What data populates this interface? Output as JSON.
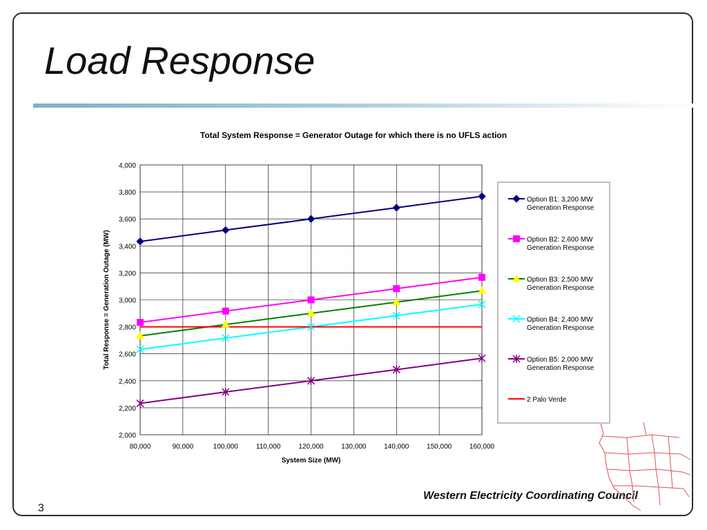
{
  "slide": {
    "title": "Load Response",
    "page_number": "3",
    "organization": "Western Electricity Coordinating Council",
    "map_icon": "western-interconnection-map-icon"
  },
  "colors": {
    "title_rule": "#7fb0c8",
    "map_lines": "#d9534f"
  },
  "chart_data": {
    "type": "line",
    "title": "Total System Response = Generator Outage for which there is no UFLS action",
    "xlabel": "System Size (MW)",
    "ylabel": "Total Response = Generation Outage (MW)",
    "xlim": [
      80000,
      160000
    ],
    "ylim": [
      2000,
      4000
    ],
    "x_ticks": [
      80000,
      90000,
      100000,
      110000,
      120000,
      130000,
      140000,
      150000,
      160000
    ],
    "x_tick_labels": [
      "80,000",
      "90,000",
      "100,000",
      "110,000",
      "120,000",
      "130,000",
      "140,000",
      "150,000",
      "160,000"
    ],
    "y_ticks": [
      2000,
      2200,
      2400,
      2600,
      2800,
      3000,
      3200,
      3400,
      3600,
      3800,
      4000
    ],
    "y_tick_labels": [
      "2,000",
      "2,200",
      "2,400",
      "2,600",
      "2,800",
      "3,000",
      "3,200",
      "3,400",
      "3,600",
      "3,800",
      "4,000"
    ],
    "grid": true,
    "legend_position": "right",
    "series": [
      {
        "name": "Option B1: 3,200 MW Generation Response",
        "color": "#000080",
        "marker": "diamond",
        "x": [
          80000,
          100000,
          120000,
          140000,
          160000
        ],
        "values": [
          3433,
          3517,
          3600,
          3683,
          3767
        ]
      },
      {
        "name": "Option B2: 2,600 MW Generation Response",
        "color": "#ff00ff",
        "marker": "square",
        "x": [
          80000,
          100000,
          120000,
          140000,
          160000
        ],
        "values": [
          2833,
          2917,
          3000,
          3083,
          3167
        ]
      },
      {
        "name": "Option B3: 2,500 MW Generation Response",
        "color": "#008000",
        "marker": "triangle",
        "marker_color": "#ffff00",
        "x": [
          80000,
          100000,
          120000,
          140000,
          160000
        ],
        "values": [
          2733,
          2817,
          2900,
          2983,
          3067
        ]
      },
      {
        "name": "Option B4: 2,400 MW Generation Response",
        "color": "#00ffff",
        "marker": "x",
        "x": [
          80000,
          100000,
          120000,
          140000,
          160000
        ],
        "values": [
          2633,
          2717,
          2800,
          2883,
          2967
        ]
      },
      {
        "name": "Option B5: 2,000 MW Generation Response",
        "color": "#800080",
        "marker": "star",
        "x": [
          80000,
          100000,
          120000,
          140000,
          160000
        ],
        "values": [
          2233,
          2317,
          2400,
          2483,
          2567
        ]
      },
      {
        "name": "2 Palo Verde",
        "color": "#ff0000",
        "marker": "none",
        "x": [
          80000,
          160000
        ],
        "values": [
          2800,
          2800
        ]
      }
    ]
  }
}
